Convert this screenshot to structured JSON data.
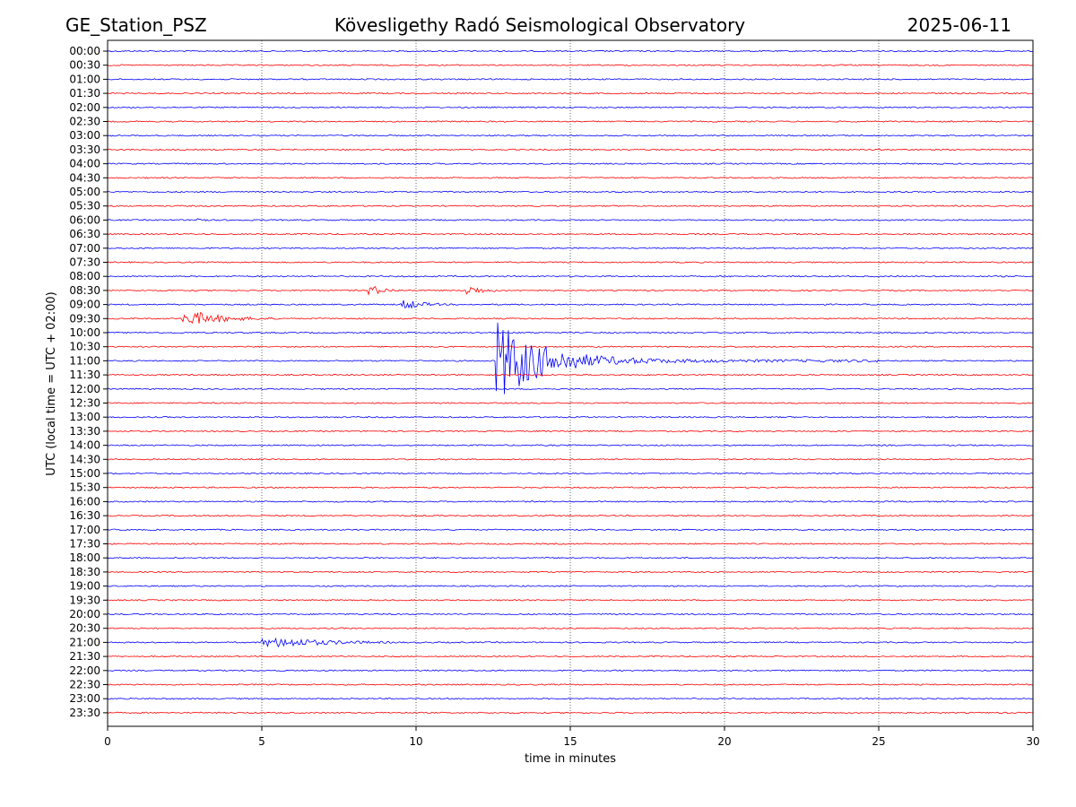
{
  "header": {
    "station": "GE_Station_PSZ",
    "observatory": "Kövesligethy Radó Seismological Observatory",
    "date": "2025-06-11"
  },
  "chart_data": {
    "type": "line",
    "title": "Kövesligethy Radó Seismological Observatory",
    "xlabel": "time in minutes",
    "ylabel": "UTC (local time = UTC + 02:00)",
    "xlim": [
      0,
      30
    ],
    "x_ticks": [
      "0",
      "5",
      "10",
      "15",
      "20",
      "25",
      "30"
    ],
    "vertical_grid_at": [
      5,
      10,
      15,
      20,
      25
    ],
    "grid_style": "dotted",
    "trace_colors": [
      "#0000ff",
      "#ff0000"
    ],
    "rows": [
      "00:00",
      "00:30",
      "01:00",
      "01:30",
      "02:00",
      "02:30",
      "03:00",
      "03:30",
      "04:00",
      "04:30",
      "05:00",
      "05:30",
      "06:00",
      "06:30",
      "07:00",
      "07:30",
      "08:00",
      "08:30",
      "09:00",
      "09:30",
      "10:00",
      "10:30",
      "11:00",
      "11:30",
      "12:00",
      "12:30",
      "13:00",
      "13:30",
      "14:00",
      "14:30",
      "15:00",
      "15:30",
      "16:00",
      "16:30",
      "17:00",
      "17:30",
      "18:00",
      "18:30",
      "19:00",
      "19:30",
      "20:00",
      "20:30",
      "21:00",
      "21:30",
      "22:00",
      "22:30",
      "23:00",
      "23:30"
    ],
    "events": [
      {
        "row": "06:00",
        "start_min": 2.9,
        "end_min": 3.3,
        "amplitude": "small"
      },
      {
        "row": "08:30",
        "start_min": 8.4,
        "end_min": 9.6,
        "amplitude": "small"
      },
      {
        "row": "08:30",
        "start_min": 11.6,
        "end_min": 12.8,
        "amplitude": "small"
      },
      {
        "row": "09:00",
        "start_min": 9.5,
        "end_min": 11.0,
        "amplitude": "small"
      },
      {
        "row": "09:30",
        "start_min": 2.4,
        "end_min": 5.5,
        "amplitude": "medium"
      },
      {
        "row": "11:00",
        "start_min": 12.6,
        "end_min": 25.0,
        "amplitude": "large"
      },
      {
        "row": "21:00",
        "start_min": 5.0,
        "end_min": 9.5,
        "amplitude": "small"
      }
    ]
  }
}
